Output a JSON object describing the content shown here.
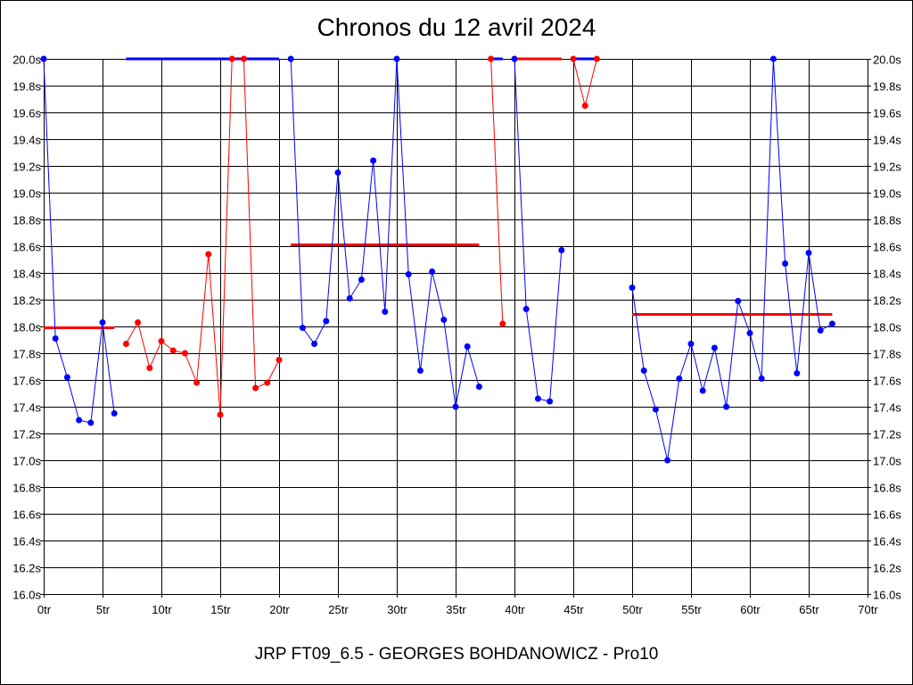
{
  "title": "Chronos du 12 avril 2024",
  "footer": "JRP FT09_6.5 - GEORGES BOHDANOWICZ - Pro10",
  "chart_data": {
    "type": "line",
    "title": "Chronos du 12 avril 2024",
    "xlabel": "",
    "ylabel": "",
    "xlim": [
      0,
      70
    ],
    "ylim": [
      16.0,
      20.0
    ],
    "x_ticks": [
      "0tr",
      "5tr",
      "10tr",
      "15tr",
      "20tr",
      "25tr",
      "30tr",
      "35tr",
      "40tr",
      "45tr",
      "50tr",
      "55tr",
      "60tr",
      "65tr",
      "70tr"
    ],
    "y_ticks": [
      "16.0s",
      "16.2s",
      "16.4s",
      "16.6s",
      "16.8s",
      "17.0s",
      "17.2s",
      "17.4s",
      "17.6s",
      "17.8s",
      "18.0s",
      "18.2s",
      "18.4s",
      "18.6s",
      "18.8s",
      "19.0s",
      "19.2s",
      "19.4s",
      "19.6s",
      "19.8s",
      "20.0s"
    ],
    "grid": true,
    "y_axis_labels_both_sides": true,
    "colors": {
      "blue": "#0000ff",
      "red": "#ff0000"
    },
    "segments": [
      {
        "color": "#0000ff",
        "mean_color": "#ff0000",
        "x_start": 0,
        "mean": 17.99,
        "mean_range": [
          0,
          6
        ],
        "values": [
          20.0,
          17.91,
          17.62,
          17.3,
          17.28,
          18.03,
          17.35
        ]
      },
      {
        "color": "#ff0000",
        "mean_color": "#0000ff",
        "x_start": 7,
        "mean": 20.0,
        "mean_range": [
          7,
          20
        ],
        "values": [
          17.87,
          18.03,
          17.69,
          17.89,
          17.82,
          17.8,
          17.58,
          18.54,
          17.34,
          20.0,
          20.0,
          17.54,
          17.58,
          17.75
        ]
      },
      {
        "color": "#0000ff",
        "mean_color": "#ff0000",
        "x_start": 21,
        "mean": 18.61,
        "mean_range": [
          21,
          37
        ],
        "values": [
          20.0,
          17.99,
          17.87,
          18.04,
          19.15,
          18.21,
          18.35,
          19.24,
          18.11,
          20.0,
          18.39,
          17.67,
          18.41,
          18.05,
          17.4,
          17.85,
          17.55
        ]
      },
      {
        "color": "#ff0000",
        "mean_color": "#0000ff",
        "x_start": 38,
        "mean": 20.0,
        "mean_range": [
          38,
          39
        ],
        "values": [
          20.0,
          18.02
        ]
      },
      {
        "color": "#0000ff",
        "mean_color": "#ff0000",
        "x_start": 40,
        "mean": 20.0,
        "mean_range": [
          40,
          44
        ],
        "values": [
          20.0,
          18.13,
          17.46,
          17.44,
          18.57
        ]
      },
      {
        "color": "#ff0000",
        "mean_color": "#0000ff",
        "x_start": 45,
        "mean": 20.0,
        "mean_range": [
          45,
          47
        ],
        "values": [
          20.0,
          19.65,
          20.0
        ]
      },
      {
        "color": "#0000ff",
        "mean_color": "#ff0000",
        "x_start": 50,
        "mean": 18.09,
        "mean_range": [
          50,
          67
        ],
        "values": [
          18.29,
          17.67,
          17.38,
          17.0,
          17.61,
          17.87,
          17.52,
          17.84,
          17.4,
          18.19,
          17.95,
          17.61,
          20.0,
          18.47,
          17.65,
          18.55,
          17.97,
          18.02
        ]
      }
    ]
  }
}
